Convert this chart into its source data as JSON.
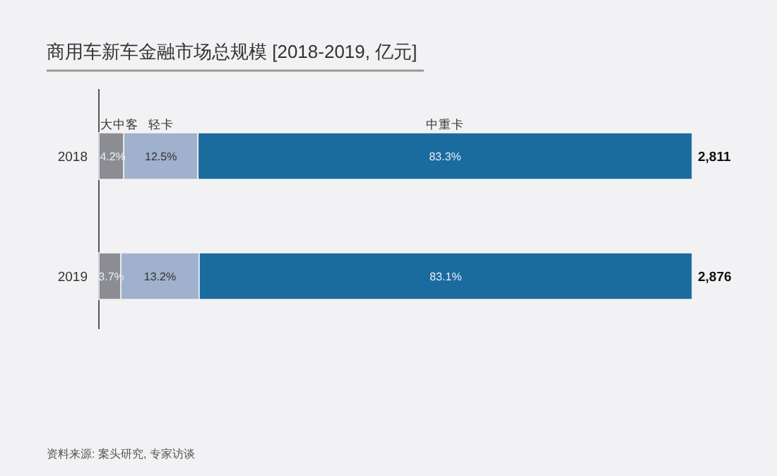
{
  "chart_data": {
    "type": "bar",
    "orientation": "horizontal",
    "stacked": true,
    "title": "商用车新车金融市场总规模 [2018-2019, 亿元]",
    "categories": [
      "2018",
      "2019"
    ],
    "series": [
      {
        "name": "大中客",
        "color": "#8c8d92",
        "values": [
          4.2,
          3.7
        ],
        "value_labels": [
          "4.2%",
          "3.7%"
        ]
      },
      {
        "name": "轻卡",
        "color": "#9fb1cc",
        "values": [
          12.5,
          13.2
        ],
        "value_labels": [
          "12.5%",
          "13.2%"
        ]
      },
      {
        "name": "中重卡",
        "color": "#1a6b9e",
        "values": [
          83.3,
          83.1
        ],
        "value_labels": [
          "83.3%",
          "83.1%"
        ]
      }
    ],
    "annotations": [
      {
        "text": "2,811",
        "x": 100,
        "y": "2018"
      },
      {
        "text": "2,876",
        "x": 100,
        "y": "2019"
      },
      "资料来源: 案头研究, 专家访谈"
    ]
  }
}
